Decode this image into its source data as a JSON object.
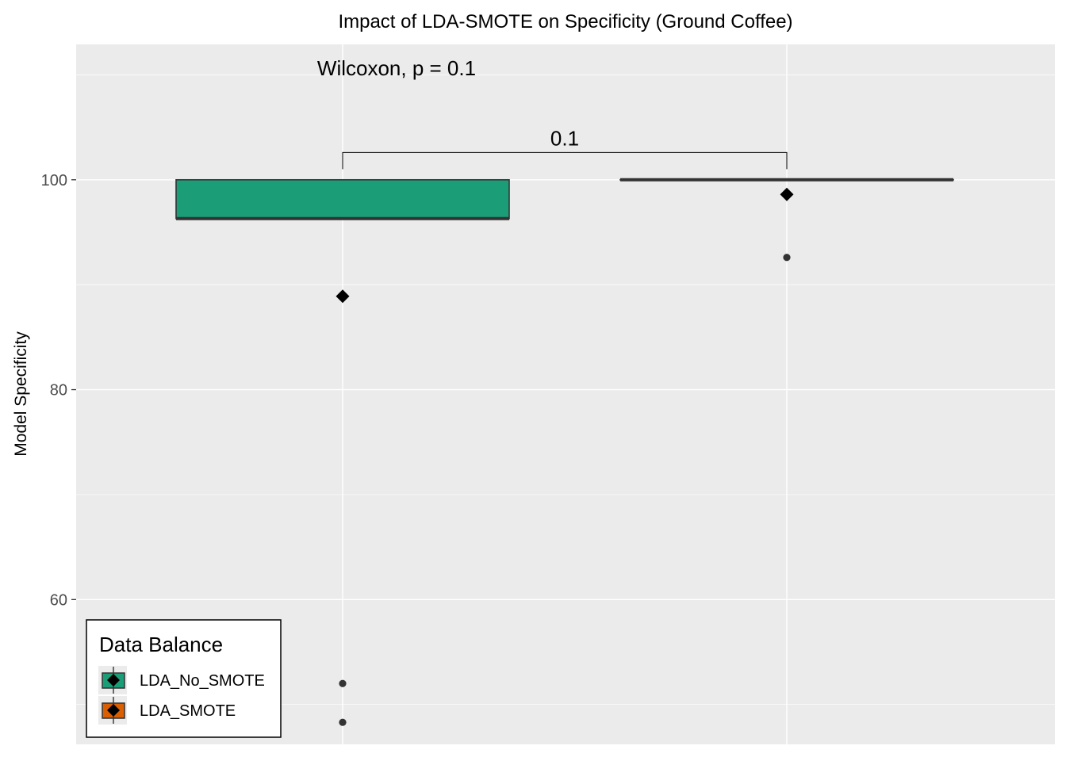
{
  "chart_data": {
    "type": "box",
    "title": "Impact of LDA-SMOTE on Specificity (Ground Coffee)",
    "xlabel": "",
    "ylabel": "Model Specificity",
    "ylim": [
      46.2,
      112.9
    ],
    "y_ticks": [
      60,
      80,
      100
    ],
    "grid": true,
    "categories": [
      "LDA_No_SMOTE",
      "LDA_SMOTE"
    ],
    "x_tick_labels_visible": false,
    "boxes": [
      {
        "group": "LDA_No_SMOTE",
        "q1": 96.3,
        "median": 96.3,
        "q3": 100,
        "whisker_low": 96.3,
        "whisker_high": 100,
        "mean": 88.9,
        "outliers": [
          52.0,
          48.3
        ],
        "color": "#1B9E77"
      },
      {
        "group": "LDA_SMOTE",
        "q1": 100,
        "median": 100,
        "q3": 100,
        "whisker_low": 100,
        "whisker_high": 100,
        "mean": 98.6,
        "outliers": [
          92.6
        ],
        "color": "#D95F02"
      }
    ],
    "annotations": {
      "test_label": "Wilcoxon, p = 0.1",
      "bracket_label": "0.1",
      "bracket_y": 102.6
    },
    "legend": {
      "title": "Data Balance",
      "position": "bottom-left-inside",
      "items": [
        {
          "label": "LDA_No_SMOTE",
          "color": "#1B9E77"
        },
        {
          "label": "LDA_SMOTE",
          "color": "#D95F02"
        }
      ]
    },
    "colors": {
      "panel": "#EBEBEB",
      "grid": "#FFFFFF",
      "box_line": "#333333",
      "mean_marker": "#000000",
      "outlier": "#333333"
    }
  }
}
